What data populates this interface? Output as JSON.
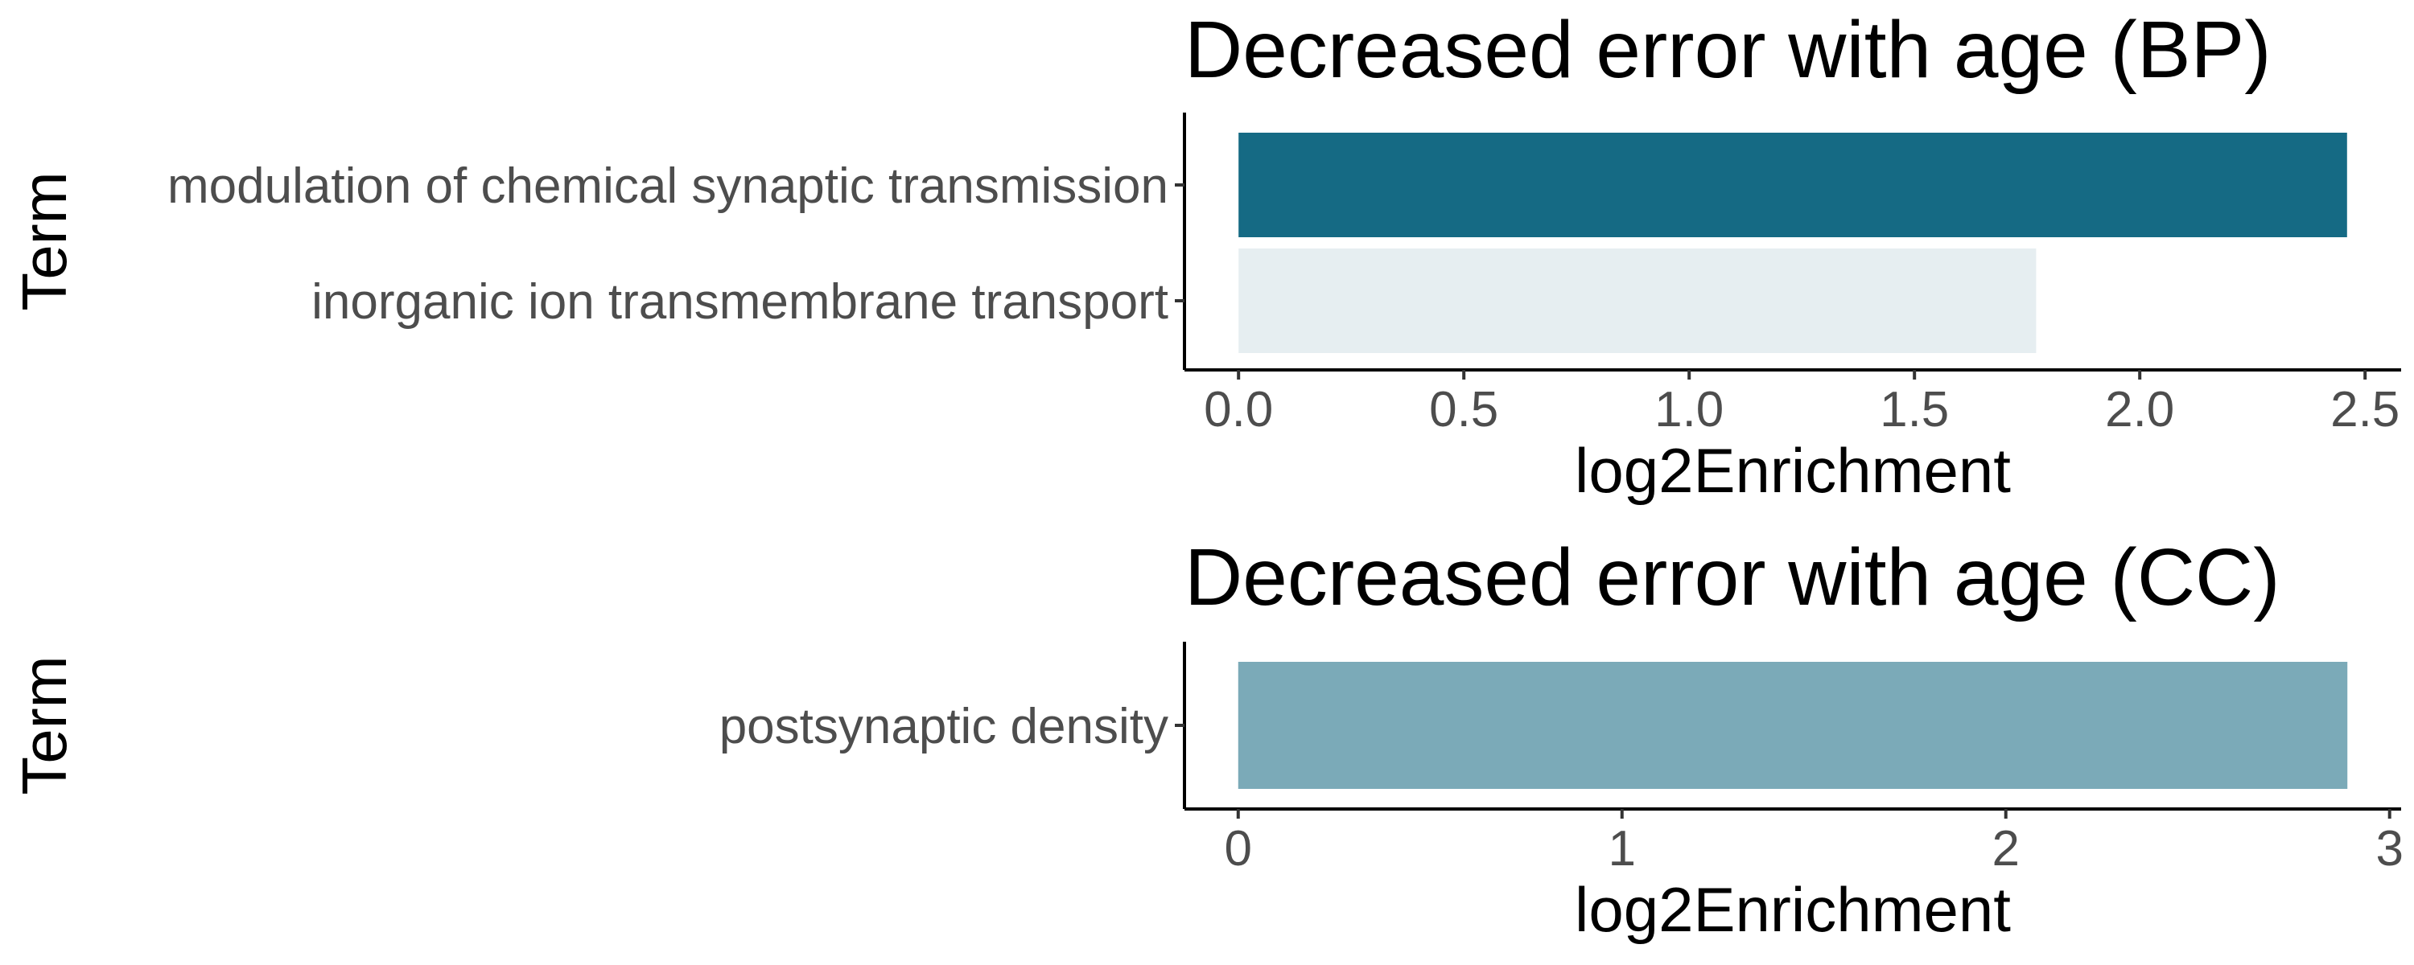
{
  "chart_data": [
    {
      "type": "bar",
      "orientation": "horizontal",
      "title": "Decreased error with age (BP)",
      "xlabel": "log2Enrichment",
      "ylabel": "Term",
      "categories": [
        "modulation of chemical synaptic transmission",
        "inorganic ion transmembrane transport"
      ],
      "values": [
        2.46,
        1.77
      ],
      "colors": [
        "#156A84",
        "#E6EEF1"
      ],
      "xlim": [
        -0.12,
        2.58
      ],
      "xticks": [
        0,
        0.5,
        1,
        1.5,
        2,
        2.5
      ],
      "xtick_labels": [
        "0.0",
        "0.5",
        "1.0",
        "1.5",
        "2.0",
        "2.5"
      ],
      "grid": false,
      "legend": "none"
    },
    {
      "type": "bar",
      "orientation": "horizontal",
      "title": "Decreased error with age (CC)",
      "xlabel": "log2Enrichment",
      "ylabel": "Term",
      "categories": [
        "postsynaptic density"
      ],
      "values": [
        2.89
      ],
      "colors": [
        "#7BAAB8"
      ],
      "xlim": [
        -0.14,
        3.03
      ],
      "xticks": [
        0,
        1,
        2,
        3
      ],
      "xtick_labels": [
        "0",
        "1",
        "2",
        "3"
      ],
      "grid": false,
      "legend": "none"
    }
  ]
}
